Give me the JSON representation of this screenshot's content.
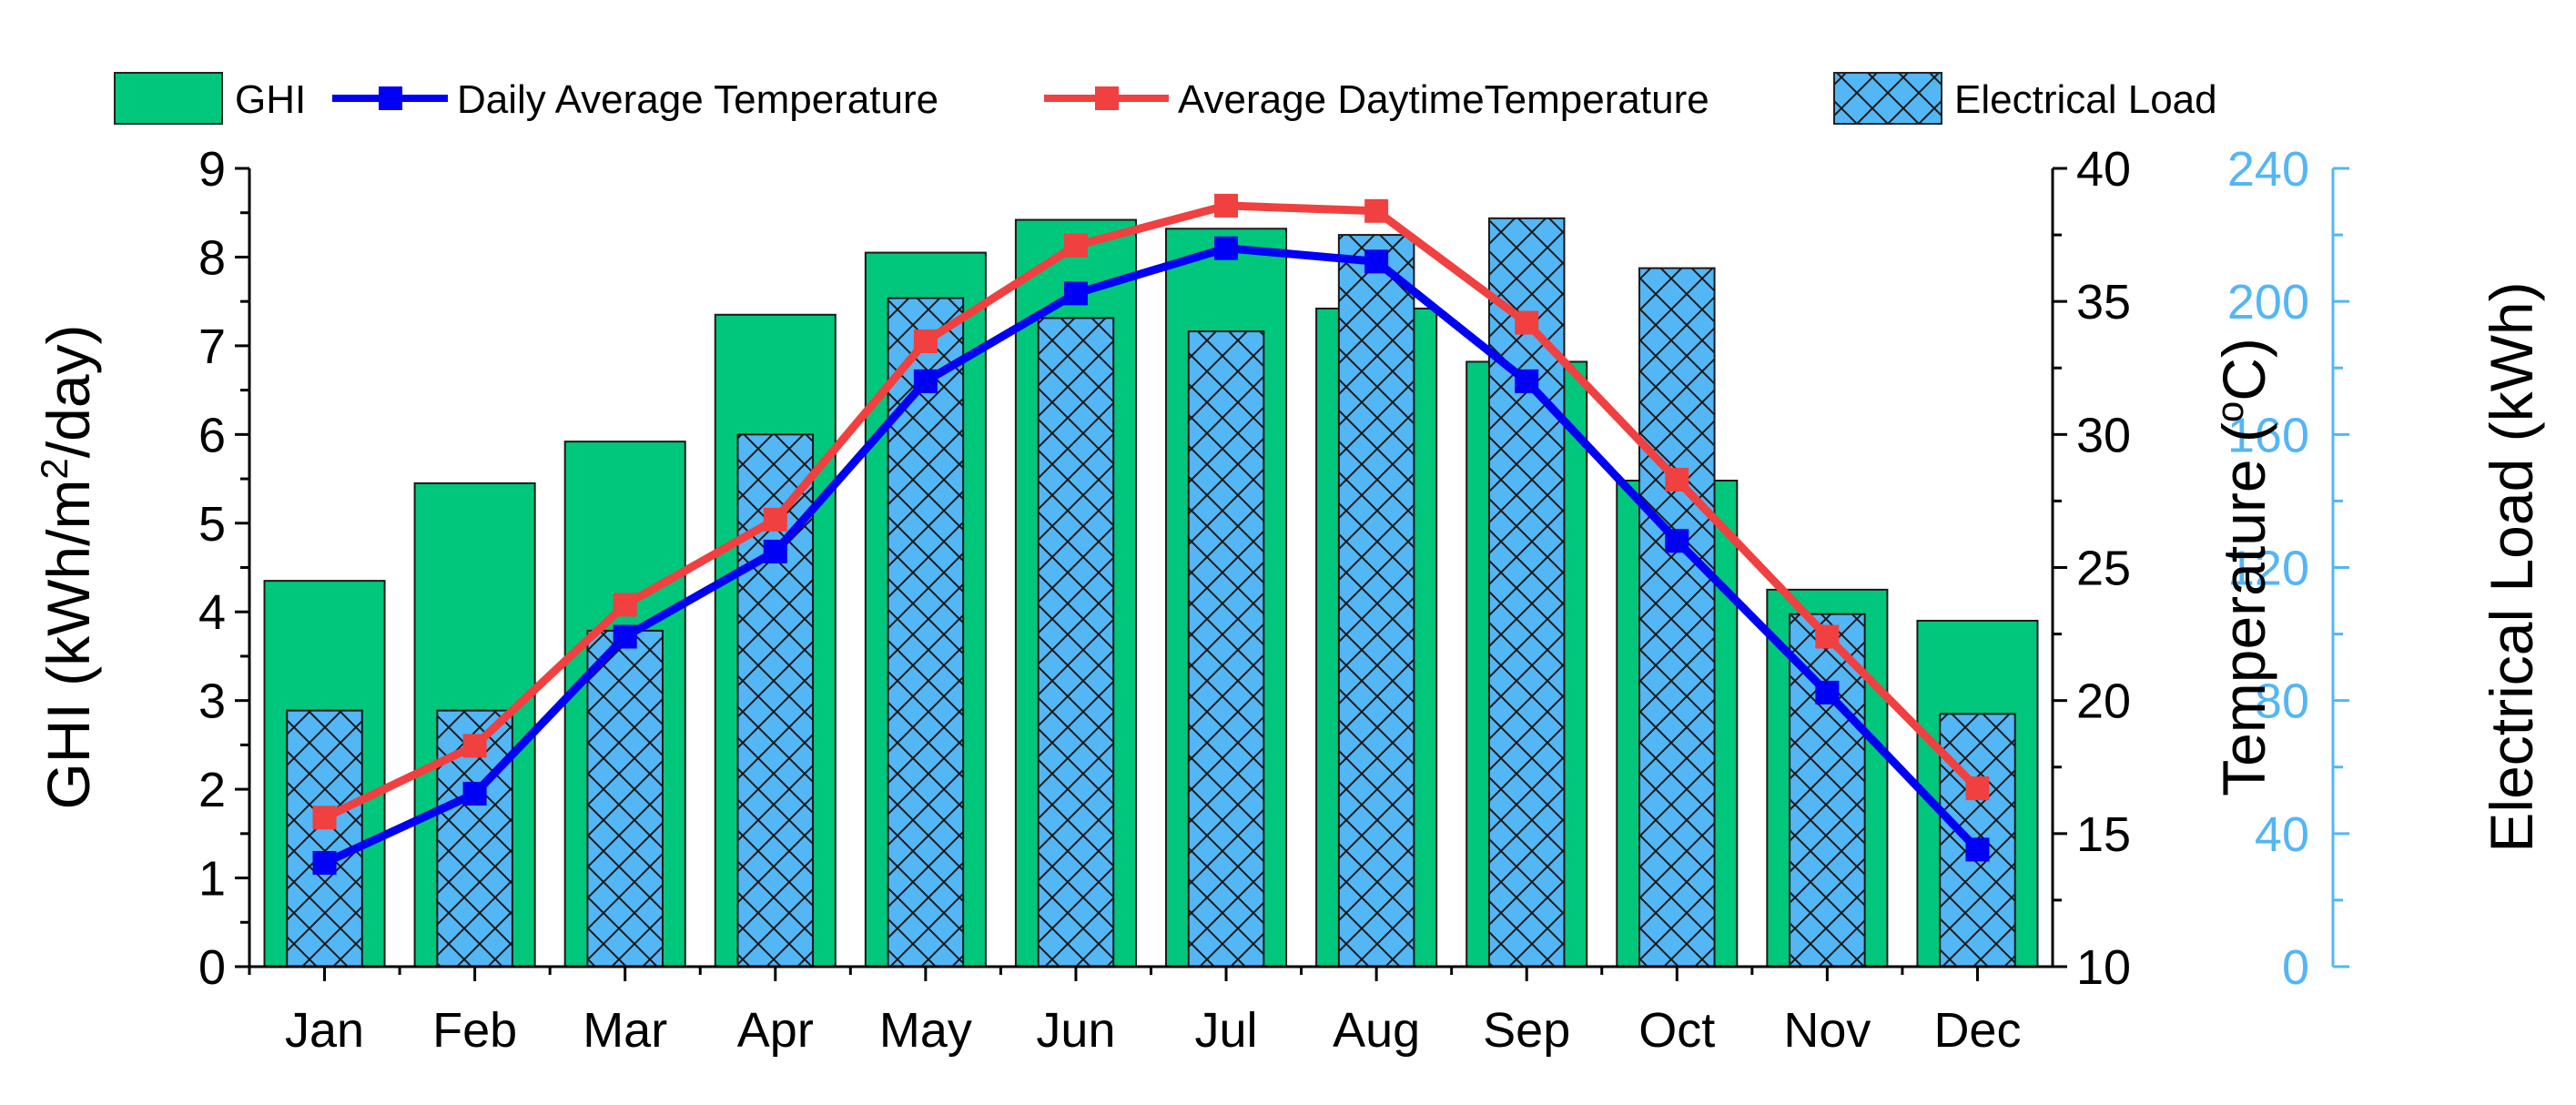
{
  "colors": {
    "ghi": "#00C77B",
    "load": "#53B6F5",
    "daily": "#0000F5",
    "daytime": "#F04040",
    "load_axis": "#53B6F5"
  },
  "legend": {
    "ghi": "GHI",
    "daily": "Daily Average Temperature",
    "daytime": "Average DaytimeTemperature",
    "load": "Electrical Load"
  },
  "chart_data": {
    "type": "bar",
    "categories": [
      "Jan",
      "Feb",
      "Mar",
      "Apr",
      "May",
      "Jun",
      "Jul",
      "Aug",
      "Sep",
      "Oct",
      "Nov",
      "Dec"
    ],
    "series": [
      {
        "name": "GHI",
        "type": "bar",
        "axis": "left",
        "values": [
          4.35,
          5.45,
          5.92,
          7.35,
          8.05,
          8.42,
          8.32,
          7.42,
          6.82,
          5.48,
          4.25,
          3.9
        ]
      },
      {
        "name": "Electrical Load",
        "type": "bar",
        "axis": "right-outer",
        "values": [
          77,
          77,
          101,
          160,
          201,
          195,
          191,
          220,
          225,
          210,
          106,
          76
        ]
      },
      {
        "name": "Daily Average Temperature",
        "type": "line",
        "axis": "right",
        "values": [
          13.9,
          16.5,
          22.4,
          25.6,
          32.0,
          35.3,
          37.0,
          36.5,
          32.0,
          26.0,
          20.3,
          14.4
        ]
      },
      {
        "name": "Average DaytimeTemperature",
        "type": "line",
        "axis": "right",
        "values": [
          15.6,
          18.3,
          23.6,
          26.8,
          33.5,
          37.1,
          38.6,
          38.4,
          34.2,
          28.3,
          22.4,
          16.7
        ]
      }
    ],
    "axes": {
      "left": {
        "label_main": "GHI (kWh/m",
        "label_sup": "2",
        "label_end": "/day)",
        "range": [
          0,
          9
        ],
        "ticks": [
          "0",
          "1",
          "2",
          "3",
          "4",
          "5",
          "6",
          "7",
          "8",
          "9"
        ]
      },
      "right": {
        "label_main": "Temperature (",
        "label_sup": "o",
        "label_end": "C)",
        "range": [
          10,
          40
        ],
        "ticks": [
          "10",
          "15",
          "20",
          "25",
          "30",
          "35",
          "40"
        ]
      },
      "right_outer": {
        "label": "Electrical Load (kWh)",
        "range": [
          0,
          240
        ],
        "ticks": [
          "0",
          "40",
          "80",
          "120",
          "160",
          "200",
          "240"
        ]
      }
    },
    "legend_position": "top",
    "grid": false
  }
}
